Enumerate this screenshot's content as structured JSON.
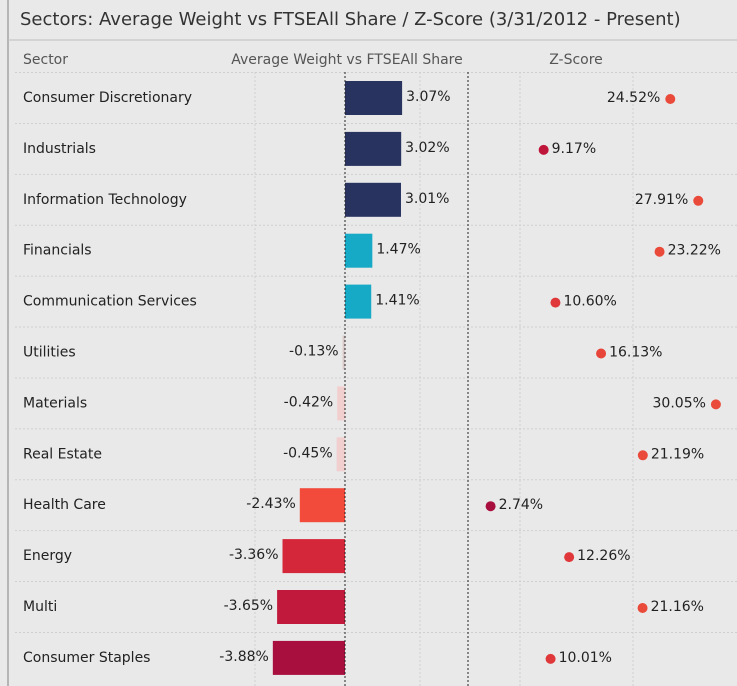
{
  "chart_data": {
    "type": "bar-dot-table",
    "title": "Sectors:  Average Weight vs FTSEAll Share / Z-Score (3/31/2012 - Present)",
    "headers": [
      "Sector",
      "Average Weight vs FTSEAll Share",
      "Z-Score"
    ],
    "categories": [
      "Consumer Discretionary",
      "Industrials",
      "Information Technology",
      "Financials",
      "Communication Services",
      "Utilities",
      "Materials",
      "Real Estate",
      "Health Care",
      "Energy",
      "Multi",
      "Consumer Staples"
    ],
    "values": [
      3.07,
      3.02,
      3.01,
      1.47,
      1.41,
      -0.13,
      -0.42,
      -0.45,
      -2.43,
      -3.36,
      -3.65,
      -3.88
    ],
    "value_labels": [
      "3.07%",
      "3.02%",
      "3.01%",
      "1.47%",
      "1.41%",
      "-0.13%",
      "-0.42%",
      "-0.45%",
      "-2.43%",
      "-3.36%",
      "-3.65%",
      "-3.88%"
    ],
    "bar_colors": [
      "#283360",
      "#283360",
      "#283360",
      "#17aac6",
      "#17aac6",
      "#d9c9c9",
      "#f1cfcf",
      "#f1cfcf",
      "#f24b3c",
      "#d4273a",
      "#c0193c",
      "#a80f3f"
    ],
    "xlim": [
      -5,
      5
    ],
    "z_values": [
      24.52,
      9.17,
      27.91,
      23.22,
      10.6,
      16.13,
      30.05,
      21.19,
      2.74,
      12.26,
      21.16,
      10.01
    ],
    "z_labels": [
      "24.52%",
      "9.17%",
      "27.91%",
      "23.22%",
      "10.60%",
      "16.13%",
      "30.05%",
      "21.19%",
      "2.74%",
      "12.26%",
      "21.16%",
      "10.01%"
    ],
    "z_colors": [
      "#ea4a3a",
      "#c0153a",
      "#ea4a3a",
      "#ea4a3a",
      "#e0383a",
      "#e8453a",
      "#ea4a3a",
      "#ea4a3a",
      "#a80f3f",
      "#e0383a",
      "#ea4a3a",
      "#e0383a"
    ],
    "zlim": [
      0,
      32
    ]
  }
}
